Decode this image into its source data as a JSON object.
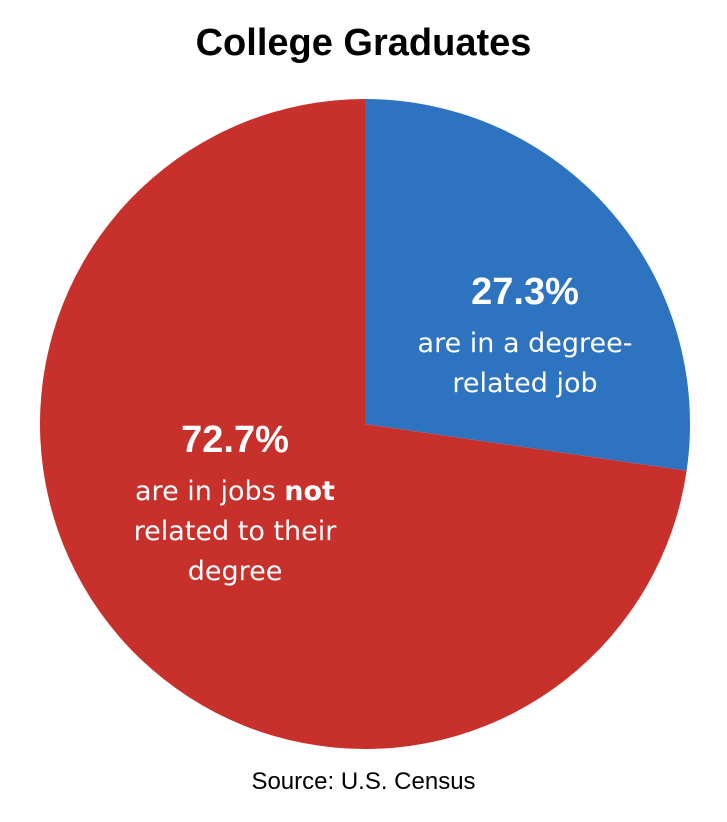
{
  "chart_data": {
    "type": "pie",
    "title": "College Graduates",
    "source": "Source: U.S. Census",
    "slices": [
      {
        "value": 27.3,
        "pct_label": "27.3%",
        "desc_lines": [
          [
            {
              "text": "are in a degree-"
            }
          ],
          [
            {
              "text": "related job"
            }
          ]
        ],
        "color": "#2E73C0"
      },
      {
        "value": 72.7,
        "pct_label": "72.7%",
        "desc_lines": [
          [
            {
              "text": "are in jobs "
            },
            {
              "text": "not",
              "bold": true
            }
          ],
          [
            {
              "text": "related to their"
            }
          ],
          [
            {
              "text": "degree"
            }
          ]
        ],
        "color": "#C8302C"
      }
    ]
  }
}
